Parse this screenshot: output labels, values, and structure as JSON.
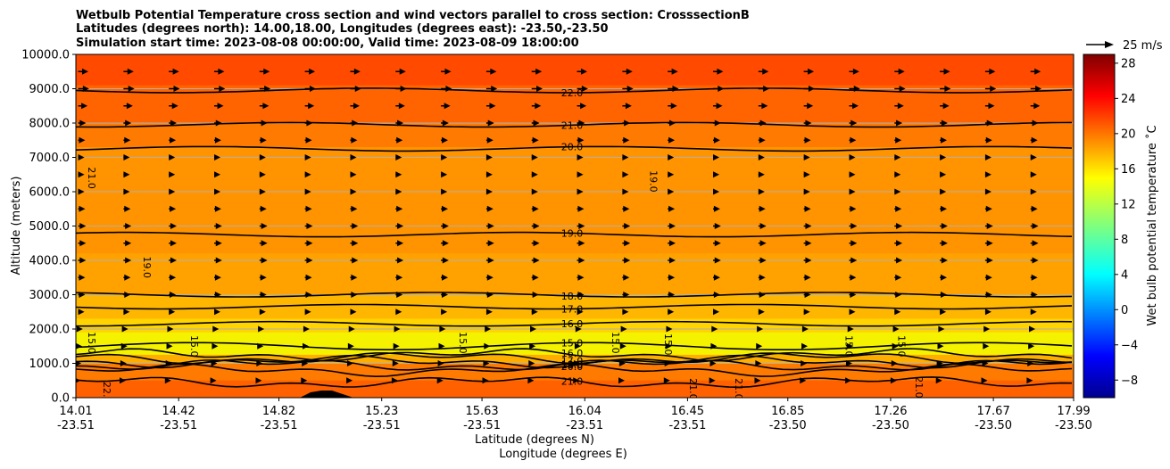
{
  "chart_data": {
    "type": "contour-cross-section",
    "title_lines": [
      "Wetbulb Potential Temperature cross section and wind vectors parallel to cross section: CrosssectionB",
      "Latitudes (degrees north): 14.00,18.00, Longitudes (degrees east): -23.50,-23.50",
      "Simulation start time: 2023-08-08 00:00:00, Valid time: 2023-08-09 18:00:00"
    ],
    "xlabel_lat": "Latitude (degrees N)",
    "xlabel_lon": "Longitude (degrees E)",
    "ylabel": "Altitude (meters)",
    "xlim": [
      14.01,
      17.99
    ],
    "ylim": [
      0,
      10000
    ],
    "x_ticks": [
      {
        "lat": "14.01",
        "lon": "-23.51",
        "value": 14.01
      },
      {
        "lat": "14.42",
        "lon": "-23.51",
        "value": 14.42
      },
      {
        "lat": "14.82",
        "lon": "-23.51",
        "value": 14.82
      },
      {
        "lat": "15.23",
        "lon": "-23.51",
        "value": 15.23
      },
      {
        "lat": "15.63",
        "lon": "-23.51",
        "value": 15.63
      },
      {
        "lat": "16.04",
        "lon": "-23.51",
        "value": 16.04
      },
      {
        "lat": "16.45",
        "lon": "-23.51",
        "value": 16.45
      },
      {
        "lat": "16.85",
        "lon": "-23.50",
        "value": 16.85
      },
      {
        "lat": "17.26",
        "lon": "-23.50",
        "value": 17.26
      },
      {
        "lat": "17.67",
        "lon": "-23.50",
        "value": 17.67
      },
      {
        "lat": "17.99",
        "lon": "-23.50",
        "value": 17.99
      }
    ],
    "y_ticks": [
      "0.0",
      "1000.0",
      "2000.0",
      "3000.0",
      "4000.0",
      "5000.0",
      "6000.0",
      "7000.0",
      "8000.0",
      "9000.0",
      "10000.0"
    ],
    "y_tick_values": [
      0,
      1000,
      2000,
      3000,
      4000,
      5000,
      6000,
      7000,
      8000,
      9000,
      10000
    ],
    "colorbar": {
      "label": "Wet bulb potential temperature ˚C",
      "min": -10,
      "max": 29,
      "ticks": [
        "−8",
        "−4",
        "0",
        "4",
        "8",
        "12",
        "16",
        "20",
        "24",
        "28"
      ],
      "tick_values": [
        -8,
        -4,
        0,
        4,
        8,
        12,
        16,
        20,
        24,
        28
      ],
      "colormap": "jet"
    },
    "quiver_key": {
      "label": "25 m/s",
      "speed": 25
    },
    "fill_bands": [
      {
        "alt_top": 10000,
        "value": 22.3,
        "color": "#ff4a00"
      },
      {
        "alt_top": 9100,
        "value": 21.5,
        "color": "#ff6400"
      },
      {
        "alt_top": 8000,
        "value": 20.5,
        "color": "#ff7a00"
      },
      {
        "alt_top": 7300,
        "value": 19.6,
        "color": "#ff9400"
      },
      {
        "alt_top": 4200,
        "value": 19.0,
        "color": "#ffa200"
      },
      {
        "alt_top": 3000,
        "value": 18.0,
        "color": "#ffb600"
      },
      {
        "alt_top": 2300,
        "value": 16.8,
        "color": "#ffd400"
      },
      {
        "alt_top": 1900,
        "value": 15.5,
        "color": "#f5f200"
      },
      {
        "alt_top": 1250,
        "value": 18.5,
        "color": "#ffae00"
      },
      {
        "alt_top": 1000,
        "value": 20.5,
        "color": "#ff7a00"
      },
      {
        "alt_top": 500,
        "value": 21.5,
        "color": "#ff6000"
      }
    ],
    "contour_lines": [
      {
        "level": 22.0,
        "label": "22.0",
        "alt": 8950
      },
      {
        "level": 21.0,
        "label": "21.0",
        "alt": 7950
      },
      {
        "level": 20.0,
        "label": "20.0",
        "alt": 7250
      },
      {
        "level": 19.0,
        "label": "19.0",
        "alt": 4750
      },
      {
        "level": 18.0,
        "label": "18.0",
        "alt": 3000
      },
      {
        "level": 17.0,
        "label": "17.0",
        "alt": 2650
      },
      {
        "level": 16.0,
        "label": "16.0",
        "alt": 2150
      },
      {
        "level": 15.0,
        "label": "15.0",
        "alt": 1500
      },
      {
        "level": 16.0,
        "label": "16.0",
        "alt": 1250
      },
      {
        "level": 17.0,
        "label": "17.0",
        "alt": 1150
      },
      {
        "level": 18.0,
        "label": "18.0",
        "alt": 1050
      },
      {
        "level": 19.0,
        "label": "19.0",
        "alt": 950
      },
      {
        "level": 20.0,
        "label": "20.0",
        "alt": 800
      },
      {
        "level": 21.0,
        "label": "21.0",
        "alt": 450
      }
    ],
    "vertical_labels": [
      {
        "label": "21.0",
        "x": 14.06,
        "alt": 6400
      },
      {
        "label": "19.0",
        "x": 14.28,
        "alt": 3800
      },
      {
        "label": "15.0",
        "x": 14.06,
        "alt": 1600
      },
      {
        "label": "15.0",
        "x": 14.47,
        "alt": 1500
      },
      {
        "label": "15.0",
        "x": 15.54,
        "alt": 1600
      },
      {
        "label": "15.0",
        "x": 16.15,
        "alt": 1600
      },
      {
        "label": "15.0",
        "x": 16.36,
        "alt": 1550
      },
      {
        "label": "15.0",
        "x": 17.08,
        "alt": 1500
      },
      {
        "label": "15.0",
        "x": 17.29,
        "alt": 1500
      },
      {
        "label": "19.0",
        "x": 16.3,
        "alt": 6300
      },
      {
        "label": "22.0",
        "x": 14.12,
        "alt": 150
      },
      {
        "label": "21.0",
        "x": 16.46,
        "alt": 250
      },
      {
        "label": "21.0",
        "x": 16.64,
        "alt": 250
      },
      {
        "label": "21.0",
        "x": 17.36,
        "alt": 300
      }
    ],
    "wind_vector_rows": [
      {
        "alt": 9500,
        "speed": 13
      },
      {
        "alt": 9000,
        "speed": 14
      },
      {
        "alt": 8500,
        "speed": 12
      },
      {
        "alt": 8000,
        "speed": 10
      },
      {
        "alt": 7500,
        "speed": 9
      },
      {
        "alt": 7000,
        "speed": 8
      },
      {
        "alt": 6500,
        "speed": 8
      },
      {
        "alt": 6000,
        "speed": 8
      },
      {
        "alt": 5500,
        "speed": 9
      },
      {
        "alt": 5000,
        "speed": 10
      },
      {
        "alt": 4500,
        "speed": 10
      },
      {
        "alt": 4000,
        "speed": 10
      },
      {
        "alt": 3500,
        "speed": 9
      },
      {
        "alt": 3000,
        "speed": 9
      },
      {
        "alt": 2500,
        "speed": 8
      },
      {
        "alt": 2000,
        "speed": 6
      },
      {
        "alt": 1500,
        "speed": 5
      },
      {
        "alt": 1000,
        "speed": 4
      },
      {
        "alt": 500,
        "speed": 3
      }
    ],
    "wind_columns": 22
  }
}
